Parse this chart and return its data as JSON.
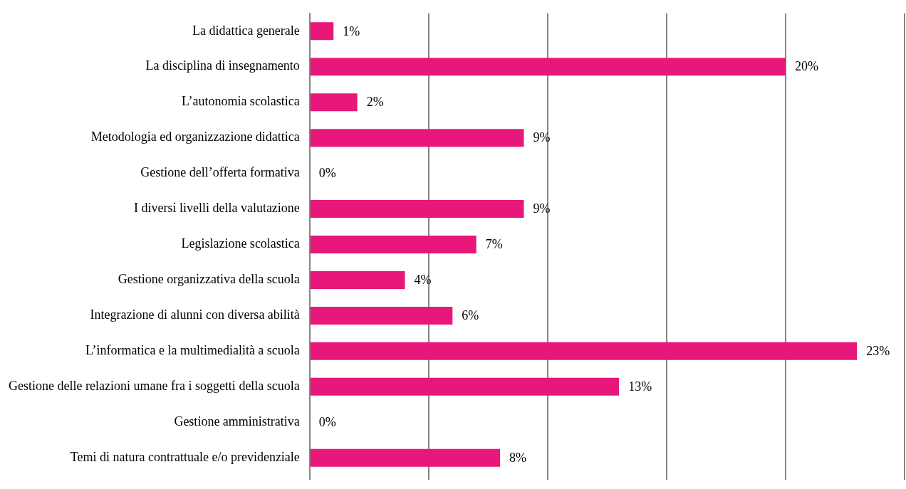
{
  "chart_data": {
    "type": "bar",
    "orientation": "horizontal",
    "categories": [
      "La didattica generale",
      "La disciplina di insegnamento",
      "L’autonomia scolastica",
      "Metodologia ed organizzazione didattica",
      "Gestione dell’offerta formativa",
      "I diversi livelli della valutazione",
      "Legislazione scolastica",
      "Gestione organizzativa della scuola",
      "Integrazione di alunni con diversa abilità",
      "L’informatica e la multimedialità a scuola",
      "Gestione delle relazioni umane fra i soggetti della scuola",
      "Gestione amministrativa",
      "Temi di natura contrattuale e/o previdenziale"
    ],
    "values": [
      1,
      20,
      2,
      9,
      0,
      9,
      7,
      4,
      6,
      23,
      13,
      0,
      8
    ],
    "value_labels": [
      "1%",
      "20%",
      "2%",
      "9%",
      "0%",
      "9%",
      "7%",
      "4%",
      "6%",
      "23%",
      "13%",
      "0%",
      "8%"
    ],
    "color": "#e8177a",
    "xlim": [
      0,
      25
    ],
    "xticks": [
      {
        "value": 0,
        "label": null
      },
      {
        "value": 5,
        "label": null
      },
      {
        "value": 10,
        "label": null
      },
      {
        "value": 15,
        "label": null
      },
      {
        "value": 20,
        "label": null
      },
      {
        "value": 25,
        "label": null
      }
    ],
    "grid": "x",
    "tick_labels": "y",
    "legend": false
  }
}
